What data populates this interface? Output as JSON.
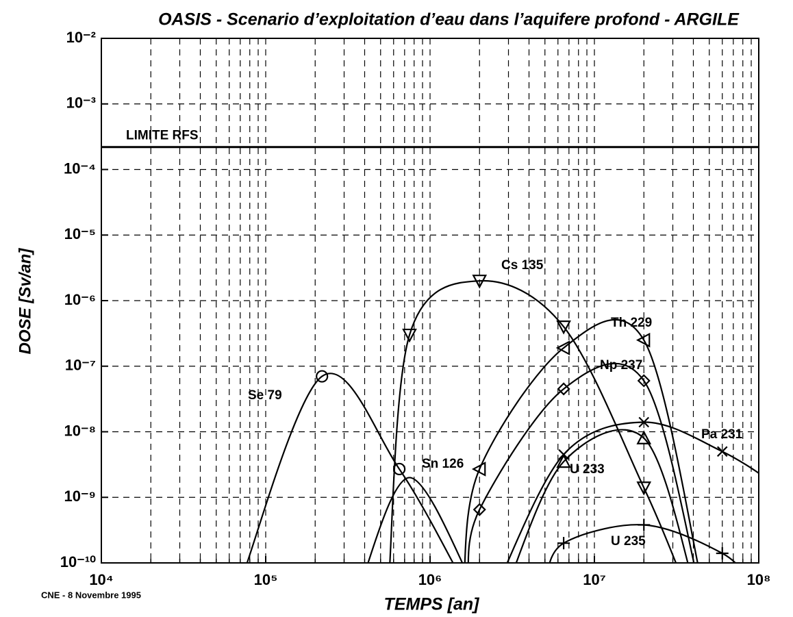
{
  "chart_data": {
    "type": "line",
    "title": "OASIS - Scenario d’exploitation d’eau dans l’aquifere profond - ARGILE",
    "xlabel": "TEMPS [an]",
    "ylabel": "DOSE [Sv/an]",
    "footnote": "CNE - 8 Novembre 1995",
    "xscale": "log",
    "yscale": "log",
    "grid": true,
    "xlim": [
      10000,
      100000000
    ],
    "ylim": [
      1e-10,
      0.01
    ],
    "xticks": [
      {
        "value": 10000,
        "label": "10⁴"
      },
      {
        "value": 100000,
        "label": "10⁵"
      },
      {
        "value": 1000000,
        "label": "10⁶"
      },
      {
        "value": 10000000,
        "label": "10⁷"
      },
      {
        "value": 100000000,
        "label": "10⁸"
      }
    ],
    "xminorticks": [
      20000,
      30000,
      40000,
      50000,
      60000,
      70000,
      80000,
      90000,
      200000,
      300000,
      400000,
      500000,
      600000,
      700000,
      800000,
      900000,
      2000000,
      3000000,
      4000000,
      5000000,
      6000000,
      7000000,
      8000000,
      9000000,
      20000000,
      30000000,
      40000000,
      50000000,
      60000000,
      70000000,
      80000000,
      90000000
    ],
    "yticks": [
      {
        "value": 1e-10,
        "label": "10⁻¹⁰"
      },
      {
        "value": 1e-09,
        "label": "10⁻⁹"
      },
      {
        "value": 1e-08,
        "label": "10⁻⁸"
      },
      {
        "value": 1e-07,
        "label": "10⁻⁷"
      },
      {
        "value": 1e-06,
        "label": "10⁻⁶"
      },
      {
        "value": 1e-05,
        "label": "10⁻⁵"
      },
      {
        "value": 0.0001,
        "label": "10⁻⁴"
      },
      {
        "value": 0.001,
        "label": "10⁻³"
      },
      {
        "value": 0.01,
        "label": "10⁻²"
      }
    ],
    "reference_line": {
      "label": "LIMITE RFS",
      "value": 0.00022
    },
    "series": [
      {
        "name": "Se 79",
        "color": "#000000",
        "marker": "circle",
        "x": [
          70000,
          220000,
          650000,
          1600000
        ],
        "values": [
          5e-11,
          7e-08,
          2.7e-09,
          5e-11
        ]
      },
      {
        "name": "Sn 126",
        "color": "#000000",
        "marker": "none",
        "x": [
          380000,
          750000,
          1800000
        ],
        "values": [
          5e-11,
          2e-09,
          5e-11
        ]
      },
      {
        "name": "Cs 135",
        "color": "#000000",
        "marker": "triangle-down",
        "x": [
          560000,
          750000,
          2000000,
          6500000,
          20000000,
          35000000
        ],
        "values": [
          5e-11,
          3e-07,
          2e-06,
          4e-07,
          1.4e-09,
          5e-11
        ]
      },
      {
        "name": "Th 229",
        "color": "#000000",
        "marker": "triangle-left",
        "x": [
          1600000,
          2000000,
          6500000,
          20000000,
          45000000
        ],
        "values": [
          5e-11,
          2.7e-09,
          1.9e-07,
          2.5e-07,
          5e-11
        ]
      },
      {
        "name": "Np 237",
        "color": "#000000",
        "marker": "diamond",
        "x": [
          1700000,
          2000000,
          6500000,
          20000000,
          43000000
        ],
        "values": [
          5e-11,
          6.5e-10,
          4.5e-08,
          6e-08,
          5e-11
        ]
      },
      {
        "name": "Pa 231",
        "color": "#000000",
        "marker": "cross",
        "x": [
          2600000,
          6500000,
          20000000,
          60000000,
          130000000
        ],
        "values": [
          5e-11,
          4.5e-09,
          1.4e-08,
          5e-09,
          1.5e-09
        ]
      },
      {
        "name": "U 233",
        "color": "#000000",
        "marker": "triangle-up",
        "x": [
          3000000,
          6500000,
          20000000,
          40000000
        ],
        "values": [
          5e-11,
          3.5e-09,
          8e-09,
          5e-11
        ]
      },
      {
        "name": "U 235",
        "color": "#000000",
        "marker": "plus",
        "x": [
          5000000,
          6500000,
          20000000,
          60000000,
          90000000
        ],
        "values": [
          5e-11,
          2e-10,
          3.8e-10,
          1.4e-10,
          5e-11
        ]
      }
    ]
  }
}
